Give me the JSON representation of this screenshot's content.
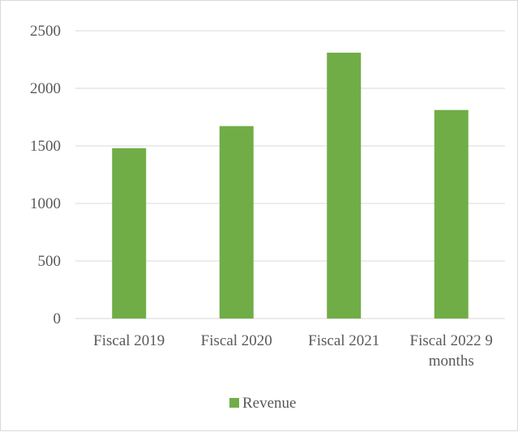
{
  "chart_data": {
    "type": "bar",
    "title": "",
    "xlabel": "",
    "ylabel": "",
    "categories": [
      "Fiscal 2019",
      "Fiscal 2020",
      "Fiscal 2021",
      "Fiscal 2022 9 months"
    ],
    "category_lines": [
      [
        "Fiscal 2019"
      ],
      [
        "Fiscal 2020"
      ],
      [
        "Fiscal 2021"
      ],
      [
        "Fiscal 2022 9",
        "months"
      ]
    ],
    "series": [
      {
        "name": "Revenue",
        "values": [
          1480,
          1672,
          2310,
          1812
        ],
        "color": "#70ad47"
      }
    ],
    "ylim": [
      0,
      2500
    ],
    "yticks": [
      0,
      500,
      1000,
      1500,
      2000,
      2500
    ],
    "grid": true,
    "gridline_color": "#d9d9d9",
    "legend": {
      "position": "bottom",
      "entries": [
        "Revenue"
      ]
    }
  }
}
